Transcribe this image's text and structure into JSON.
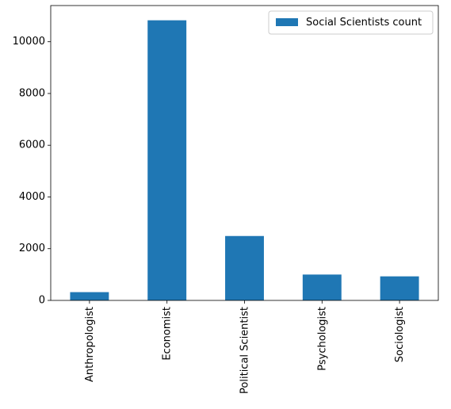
{
  "chart_data": {
    "type": "bar",
    "categories": [
      "Anthropologist",
      "Economist",
      "Political Scientist",
      "Psychologist",
      "Sociologist"
    ],
    "series": [
      {
        "name": "Social Scientists count",
        "values": [
          320,
          10830,
          2490,
          1000,
          930
        ],
        "color": "#1f77b4"
      }
    ],
    "ylim": [
      0,
      11400
    ],
    "yticks": [
      0,
      2000,
      4000,
      6000,
      8000,
      10000
    ],
    "xlabel": "",
    "ylabel": "",
    "title": "",
    "legend": {
      "position": "top-right"
    },
    "grid": false,
    "x_tick_rotation": 90
  }
}
